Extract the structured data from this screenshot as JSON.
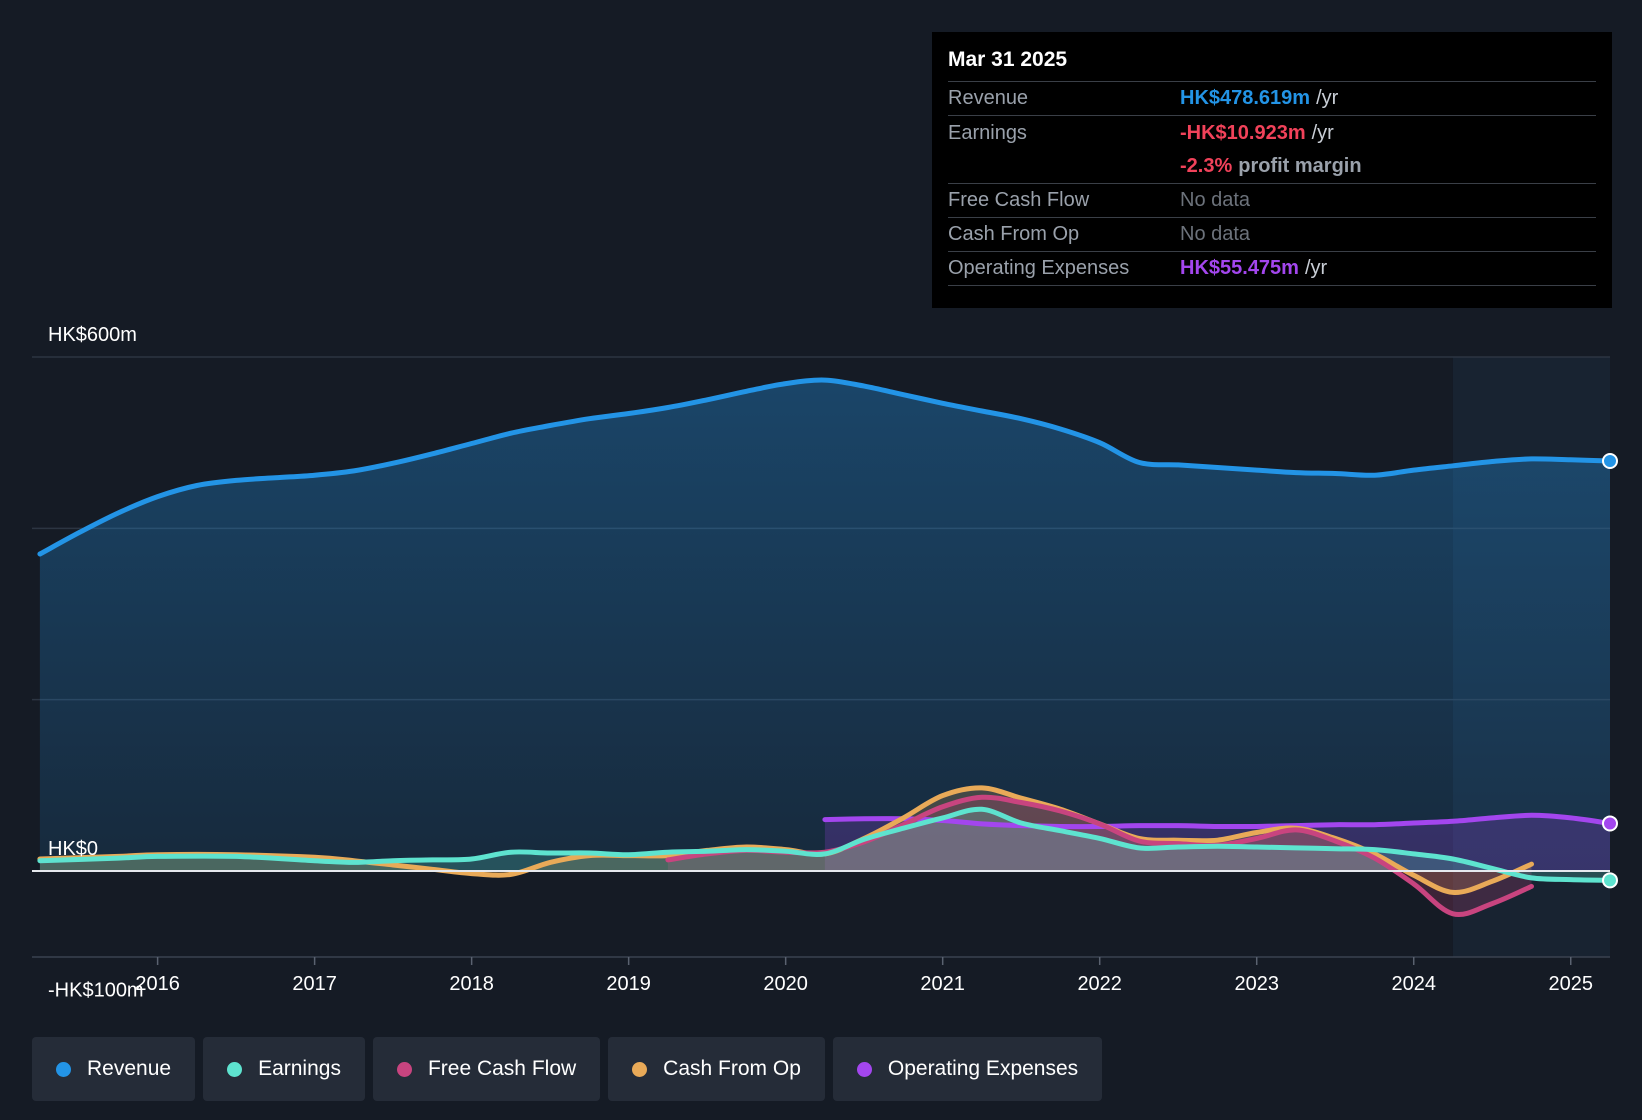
{
  "colors": {
    "revenue": "#2394e6",
    "earnings": "#5ee3cf",
    "free_cash_flow": "#c8447f",
    "cash_from_op": "#e9aa58",
    "operating_expenses": "#a346ee",
    "negative": "#f1425a"
  },
  "tooltip": {
    "date": "Mar 31 2025",
    "revenue": {
      "label": "Revenue",
      "value": "HK$478.619m",
      "unit": "/yr"
    },
    "earnings": {
      "label": "Earnings",
      "value": "-HK$10.923m",
      "unit": "/yr"
    },
    "margin": {
      "value": "-2.3%",
      "text": "profit margin"
    },
    "fcf": {
      "label": "Free Cash Flow",
      "value": "No data"
    },
    "cfo": {
      "label": "Cash From Op",
      "value": "No data"
    },
    "opex": {
      "label": "Operating Expenses",
      "value": "HK$55.475m",
      "unit": "/yr"
    }
  },
  "legend": [
    {
      "label": "Revenue",
      "color": "#2394e6"
    },
    {
      "label": "Earnings",
      "color": "#5ee3cf"
    },
    {
      "label": "Free Cash Flow",
      "color": "#c8447f"
    },
    {
      "label": "Cash From Op",
      "color": "#e9aa58"
    },
    {
      "label": "Operating Expenses",
      "color": "#a346ee"
    }
  ],
  "chart_data": {
    "type": "line",
    "x_ticks": [
      "2016",
      "2017",
      "2018",
      "2019",
      "2020",
      "2021",
      "2022",
      "2023",
      "2024",
      "2025"
    ],
    "y_labels": [
      {
        "label": "HK$600m",
        "value": 600
      },
      {
        "label": "HK$0",
        "value": 0
      },
      {
        "label": "-HK$100m",
        "value": -100
      }
    ],
    "ylim": [
      -100,
      600
    ],
    "xlim": [
      2015.2,
      2025.25
    ],
    "grid": true,
    "forecast_start": 2024.25,
    "series": [
      {
        "name": "Revenue",
        "key": "revenue",
        "fill": true,
        "points": [
          [
            2015.25,
            370
          ],
          [
            2015.5,
            395
          ],
          [
            2015.75,
            418
          ],
          [
            2016,
            437
          ],
          [
            2016.25,
            450
          ],
          [
            2016.5,
            456
          ],
          [
            2016.75,
            459
          ],
          [
            2017,
            462
          ],
          [
            2017.25,
            467
          ],
          [
            2017.5,
            476
          ],
          [
            2017.75,
            487
          ],
          [
            2018,
            499
          ],
          [
            2018.25,
            511
          ],
          [
            2018.5,
            520
          ],
          [
            2018.75,
            528
          ],
          [
            2019,
            534
          ],
          [
            2019.25,
            541
          ],
          [
            2019.5,
            550
          ],
          [
            2019.75,
            560
          ],
          [
            2020,
            569
          ],
          [
            2020.25,
            573
          ],
          [
            2020.5,
            566
          ],
          [
            2020.75,
            556
          ],
          [
            2021,
            546
          ],
          [
            2021.25,
            537
          ],
          [
            2021.5,
            528
          ],
          [
            2021.75,
            516
          ],
          [
            2022,
            500
          ],
          [
            2022.25,
            477
          ],
          [
            2022.5,
            474
          ],
          [
            2022.75,
            471
          ],
          [
            2023,
            468
          ],
          [
            2023.25,
            465
          ],
          [
            2023.5,
            464
          ],
          [
            2023.75,
            462
          ],
          [
            2024,
            468
          ],
          [
            2024.25,
            473
          ],
          [
            2024.5,
            478
          ],
          [
            2024.75,
            481
          ],
          [
            2025,
            480
          ],
          [
            2025.25,
            478.6
          ]
        ]
      },
      {
        "name": "Earnings",
        "key": "earnings",
        "fill": true,
        "points": [
          [
            2015.25,
            12
          ],
          [
            2015.75,
            15
          ],
          [
            2016,
            17
          ],
          [
            2016.5,
            17
          ],
          [
            2017,
            12
          ],
          [
            2017.25,
            10
          ],
          [
            2017.5,
            12
          ],
          [
            2017.75,
            13
          ],
          [
            2018,
            14
          ],
          [
            2018.25,
            22
          ],
          [
            2018.5,
            21
          ],
          [
            2018.75,
            21
          ],
          [
            2019,
            19
          ],
          [
            2019.25,
            22
          ],
          [
            2019.5,
            23
          ],
          [
            2019.75,
            25
          ],
          [
            2020,
            23
          ],
          [
            2020.25,
            20
          ],
          [
            2020.5,
            37
          ],
          [
            2020.75,
            50
          ],
          [
            2021,
            62
          ],
          [
            2021.25,
            72
          ],
          [
            2021.5,
            56
          ],
          [
            2021.75,
            47
          ],
          [
            2022,
            38
          ],
          [
            2022.25,
            27
          ],
          [
            2022.5,
            28
          ],
          [
            2022.75,
            29
          ],
          [
            2023,
            28
          ],
          [
            2023.25,
            27
          ],
          [
            2023.5,
            26
          ],
          [
            2023.75,
            25
          ],
          [
            2024,
            20
          ],
          [
            2024.25,
            14
          ],
          [
            2024.5,
            3
          ],
          [
            2024.75,
            -8
          ],
          [
            2025,
            -10
          ],
          [
            2025.25,
            -10.9
          ]
        ]
      },
      {
        "name": "Free Cash Flow",
        "key": "free_cash_flow",
        "fill": true,
        "points": [
          [
            2019.25,
            13
          ],
          [
            2019.5,
            20
          ],
          [
            2019.75,
            24
          ],
          [
            2020,
            22
          ],
          [
            2020.25,
            22
          ],
          [
            2020.5,
            34
          ],
          [
            2020.75,
            54
          ],
          [
            2021,
            75
          ],
          [
            2021.25,
            86
          ],
          [
            2021.5,
            80
          ],
          [
            2021.75,
            70
          ],
          [
            2022,
            55
          ],
          [
            2022.25,
            35
          ],
          [
            2022.5,
            32
          ],
          [
            2022.75,
            30
          ],
          [
            2023,
            38
          ],
          [
            2023.25,
            48
          ],
          [
            2023.5,
            35
          ],
          [
            2023.75,
            15
          ],
          [
            2024,
            -15
          ],
          [
            2024.25,
            -50
          ],
          [
            2024.5,
            -38
          ],
          [
            2024.75,
            -18
          ]
        ]
      },
      {
        "name": "Cash From Op",
        "key": "cash_from_op",
        "fill": true,
        "points": [
          [
            2015.25,
            14
          ],
          [
            2015.75,
            17
          ],
          [
            2016,
            19
          ],
          [
            2016.5,
            19
          ],
          [
            2017,
            16
          ],
          [
            2017.25,
            12
          ],
          [
            2017.5,
            7
          ],
          [
            2017.75,
            2
          ],
          [
            2018,
            -3
          ],
          [
            2018.25,
            -4
          ],
          [
            2018.5,
            10
          ],
          [
            2018.75,
            18
          ],
          [
            2019,
            18
          ],
          [
            2019.25,
            18
          ],
          [
            2019.5,
            24
          ],
          [
            2019.75,
            28
          ],
          [
            2020,
            25
          ],
          [
            2020.25,
            20
          ],
          [
            2020.5,
            38
          ],
          [
            2020.75,
            62
          ],
          [
            2021,
            88
          ],
          [
            2021.25,
            97
          ],
          [
            2021.5,
            85
          ],
          [
            2021.75,
            72
          ],
          [
            2022,
            55
          ],
          [
            2022.25,
            38
          ],
          [
            2022.5,
            36
          ],
          [
            2022.75,
            36
          ],
          [
            2023,
            45
          ],
          [
            2023.25,
            50
          ],
          [
            2023.5,
            38
          ],
          [
            2023.75,
            20
          ],
          [
            2024,
            -5
          ],
          [
            2024.25,
            -25
          ],
          [
            2024.5,
            -12
          ],
          [
            2024.75,
            8
          ]
        ]
      },
      {
        "name": "Operating Expenses",
        "key": "operating_expenses",
        "fill": true,
        "points": [
          [
            2020.25,
            60
          ],
          [
            2020.5,
            61
          ],
          [
            2020.75,
            61
          ],
          [
            2021,
            59
          ],
          [
            2021.25,
            55
          ],
          [
            2021.5,
            53
          ],
          [
            2021.75,
            52
          ],
          [
            2022,
            52
          ],
          [
            2022.25,
            53
          ],
          [
            2022.5,
            53
          ],
          [
            2022.75,
            52
          ],
          [
            2023,
            52
          ],
          [
            2023.25,
            53
          ],
          [
            2023.5,
            54
          ],
          [
            2023.75,
            54
          ],
          [
            2024,
            56
          ],
          [
            2024.25,
            58
          ],
          [
            2024.5,
            62
          ],
          [
            2024.75,
            65
          ],
          [
            2025,
            62
          ],
          [
            2025.25,
            55.5
          ]
        ]
      }
    ]
  }
}
